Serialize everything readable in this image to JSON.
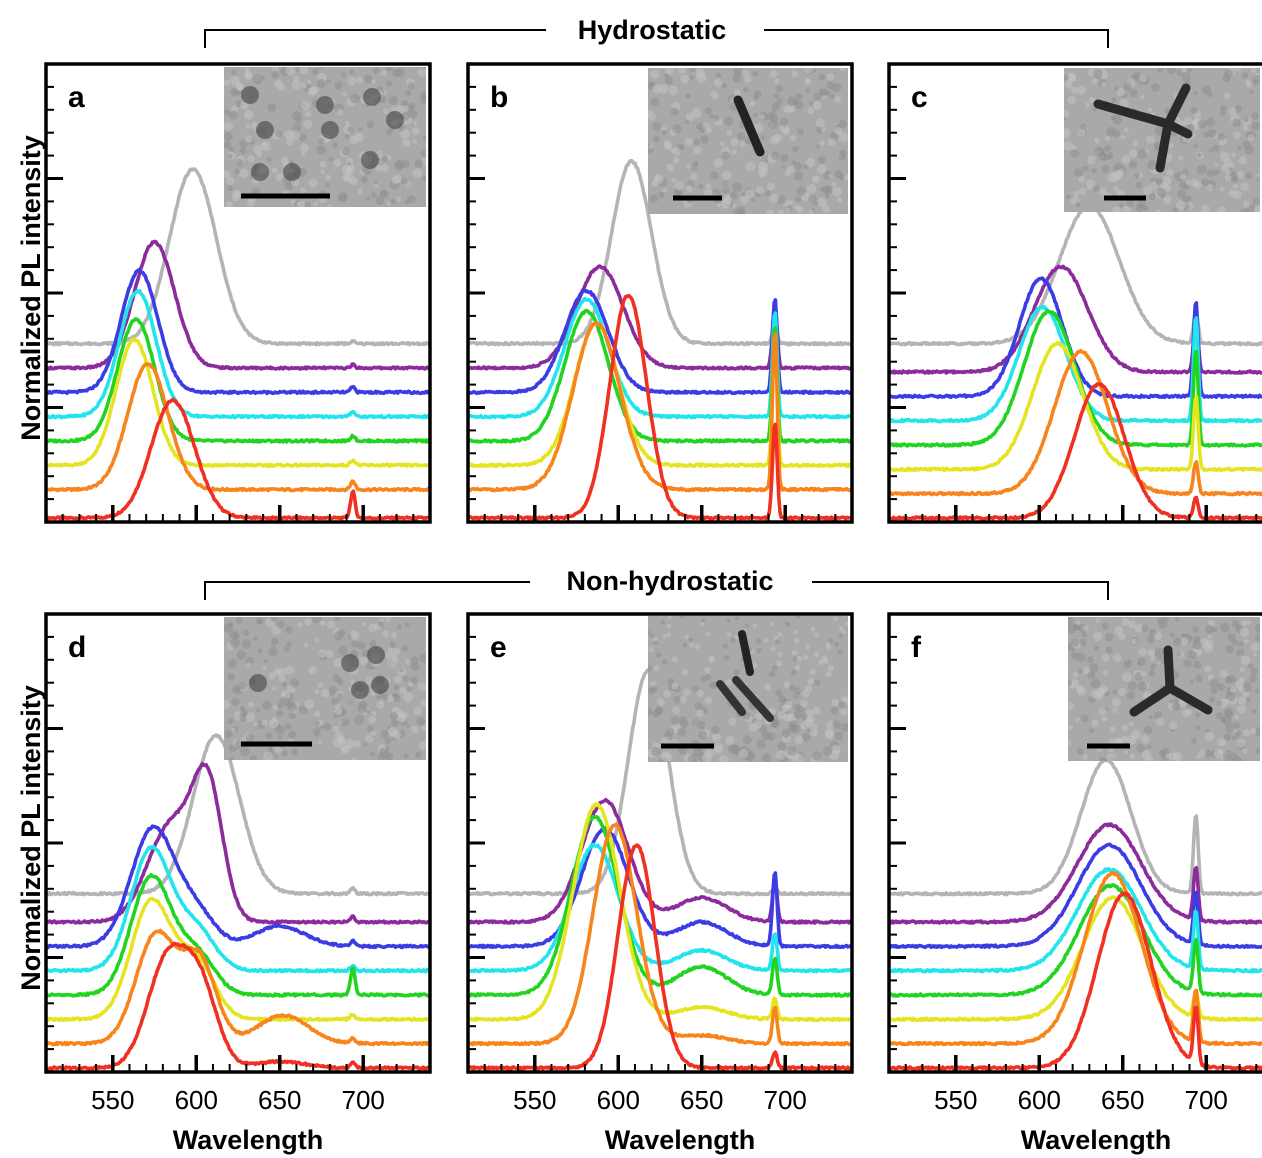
{
  "figure": {
    "y_axis_label": "Normalized PL intensity",
    "x_axis_label": "Wavelength",
    "group_top_label": "Hydrostatic",
    "group_bottom_label": "Non-hydrostatic",
    "series_colors": [
      "#f03020",
      "#f8841c",
      "#e4e420",
      "#22d422",
      "#22e4ec",
      "#3c3ce4",
      "#8c2c9c",
      "#b4b4b4"
    ],
    "scale_bar_color": "#000000"
  },
  "chart_data": [
    {
      "panel": "a",
      "type": "line",
      "group": "Hydrostatic",
      "xlabel": "Wavelength",
      "ylabel": "Normalized PL intensity",
      "xlim": [
        510,
        740
      ],
      "xticks": [
        550,
        600,
        650,
        700
      ],
      "xtick_labels_visible": false,
      "offsets": [
        0.0,
        0.35,
        0.65,
        0.95,
        1.25,
        1.55,
        1.85,
        2.15
      ],
      "series": [
        {
          "color": "#f03020",
          "peaks": [
            {
              "center": 586,
              "width": 13,
              "height": 1.45
            }
          ],
          "ruby_peak": 0.25
        },
        {
          "color": "#f8841c",
          "peaks": [
            {
              "center": 571,
              "width": 12,
              "height": 1.55
            }
          ],
          "ruby_peak": 0.08
        },
        {
          "color": "#e4e420",
          "peaks": [
            {
              "center": 563,
              "width": 11,
              "height": 1.55
            }
          ],
          "ruby_peak": 0.05
        },
        {
          "color": "#22d422",
          "peaks": [
            {
              "center": 564,
              "width": 11,
              "height": 1.5
            }
          ],
          "ruby_peak": 0.05
        },
        {
          "color": "#22e4ec",
          "peaks": [
            {
              "center": 565,
              "width": 11,
              "height": 1.55
            }
          ],
          "ruby_peak": 0.05
        },
        {
          "color": "#3c3ce4",
          "peaks": [
            {
              "center": 566,
              "width": 11,
              "height": 1.5
            }
          ],
          "ruby_peak": 0.05
        },
        {
          "color": "#8c2c9c",
          "peaks": [
            {
              "center": 575,
              "width": 12,
              "height": 1.55
            }
          ],
          "ruby_peak": 0.03
        },
        {
          "color": "#b4b4b4",
          "peaks": [
            {
              "center": 598,
              "width": 14,
              "height": 2.15
            }
          ],
          "ruby_peak": 0.02
        }
      ]
    },
    {
      "panel": "b",
      "type": "line",
      "group": "Hydrostatic",
      "xlabel": "Wavelength",
      "ylabel": "Normalized PL intensity",
      "xlim": [
        510,
        740
      ],
      "xticks": [
        550,
        600,
        650,
        700
      ],
      "xtick_labels_visible": false,
      "offsets": [
        0.0,
        0.35,
        0.65,
        0.95,
        1.25,
        1.55,
        1.85,
        2.15
      ],
      "series": [
        {
          "color": "#f03020",
          "peaks": [
            {
              "center": 606,
              "width": 11,
              "height": 2.75
            }
          ],
          "ruby_peak": 0.9
        },
        {
          "color": "#f8841c",
          "peaks": [
            {
              "center": 587,
              "width": 14,
              "height": 2.05
            }
          ],
          "ruby_peak": 1.5
        },
        {
          "color": "#e4e420",
          "peaks": [
            {
              "center": 587,
              "width": 13,
              "height": 1.75
            }
          ],
          "ruby_peak": 1.2
        },
        {
          "color": "#22d422",
          "peaks": [
            {
              "center": 581,
              "width": 13,
              "height": 1.6
            }
          ],
          "ruby_peak": 1.1
        },
        {
          "color": "#22e4ec",
          "peaks": [
            {
              "center": 581,
              "width": 13,
              "height": 1.45
            }
          ],
          "ruby_peak": 1.0
        },
        {
          "color": "#3c3ce4",
          "peaks": [
            {
              "center": 581,
              "width": 13,
              "height": 1.25
            }
          ],
          "ruby_peak": 0.9
        },
        {
          "color": "#8c2c9c",
          "peaks": [
            {
              "center": 589,
              "width": 14,
              "height": 1.25
            }
          ],
          "ruby_peak": 0.6
        },
        {
          "color": "#b4b4b4",
          "peaks": [
            {
              "center": 608,
              "width": 12,
              "height": 2.25
            }
          ],
          "ruby_peak": 0.2
        }
      ]
    },
    {
      "panel": "c",
      "type": "line",
      "group": "Hydrostatic",
      "xlabel": "Wavelength",
      "ylabel": "Normalized PL intensity",
      "xlim": [
        510,
        740
      ],
      "xticks": [
        550,
        600,
        650,
        700
      ],
      "xtick_labels_visible": false,
      "offsets": [
        0.0,
        0.3,
        0.6,
        0.9,
        1.2,
        1.5,
        1.8,
        2.15
      ],
      "series": [
        {
          "color": "#f03020",
          "peaks": [
            {
              "center": 636,
              "width": 15,
              "height": 1.65
            }
          ],
          "ruby_peak": 0.2
        },
        {
          "color": "#f8841c",
          "peaks": [
            {
              "center": 625,
              "width": 16,
              "height": 1.75
            }
          ],
          "ruby_peak": 0.3
        },
        {
          "color": "#e4e420",
          "peaks": [
            {
              "center": 611,
              "width": 15,
              "height": 1.55
            }
          ],
          "ruby_peak": 0.7
        },
        {
          "color": "#22d422",
          "peaks": [
            {
              "center": 606,
              "width": 15,
              "height": 1.65
            }
          ],
          "ruby_peak": 0.9
        },
        {
          "color": "#22e4ec",
          "peaks": [
            {
              "center": 602,
              "width": 14,
              "height": 1.4
            }
          ],
          "ruby_peak": 1.0
        },
        {
          "color": "#3c3ce4",
          "peaks": [
            {
              "center": 601,
              "width": 13,
              "height": 1.45
            }
          ],
          "ruby_peak": 0.9
        },
        {
          "color": "#8c2c9c",
          "peaks": [
            {
              "center": 613,
              "width": 16,
              "height": 1.3
            }
          ],
          "ruby_peak": 0.5
        },
        {
          "color": "#b4b4b4",
          "peaks": [
            {
              "center": 630,
              "width": 18,
              "height": 1.7
            }
          ],
          "ruby_peak": 0.3
        }
      ]
    },
    {
      "panel": "d",
      "type": "line",
      "group": "Non-hydrostatic",
      "xlabel": "Wavelength",
      "ylabel": "Normalized PL intensity",
      "xlim": [
        510,
        740
      ],
      "xticks": [
        550,
        600,
        650,
        700
      ],
      "xtick_labels_visible": true,
      "offsets": [
        0.0,
        0.3,
        0.6,
        0.9,
        1.2,
        1.5,
        1.8,
        2.15
      ],
      "series": [
        {
          "color": "#f03020",
          "peaks": [
            {
              "center": 583,
              "width": 12,
              "height": 1.35
            },
            {
              "center": 603,
              "width": 10,
              "height": 0.9
            },
            {
              "center": 650,
              "width": 15,
              "height": 0.08
            }
          ],
          "ruby_peak": 0.05
        },
        {
          "color": "#f8841c",
          "peaks": [
            {
              "center": 576,
              "width": 12,
              "height": 1.35
            },
            {
              "center": 602,
              "width": 10,
              "height": 1.0
            },
            {
              "center": 652,
              "width": 15,
              "height": 0.35
            }
          ],
          "ruby_peak": 0.05
        },
        {
          "color": "#e4e420",
          "peaks": [
            {
              "center": 573,
              "width": 12,
              "height": 1.45
            },
            {
              "center": 600,
              "width": 11,
              "height": 0.7
            }
          ],
          "ruby_peak": 0.05
        },
        {
          "color": "#22d422",
          "peaks": [
            {
              "center": 573,
              "width": 12,
              "height": 1.45
            },
            {
              "center": 600,
              "width": 11,
              "height": 0.5
            }
          ],
          "ruby_peak": 0.25
        },
        {
          "color": "#22e4ec",
          "peaks": [
            {
              "center": 573,
              "width": 12,
              "height": 1.5
            },
            {
              "center": 600,
              "width": 11,
              "height": 0.5
            }
          ],
          "ruby_peak": 0.05
        },
        {
          "color": "#3c3ce4",
          "peaks": [
            {
              "center": 574,
              "width": 13,
              "height": 1.45
            },
            {
              "center": 600,
              "width": 11,
              "height": 0.4
            },
            {
              "center": 650,
              "width": 15,
              "height": 0.25
            }
          ],
          "ruby_peak": 0.05
        },
        {
          "color": "#8c2c9c",
          "peaks": [
            {
              "center": 585,
              "width": 14,
              "height": 1.2
            },
            {
              "center": 607,
              "width": 9,
              "height": 1.55
            }
          ],
          "ruby_peak": 0.05
        },
        {
          "color": "#b4b4b4",
          "peaks": [
            {
              "center": 612,
              "width": 14,
              "height": 1.95
            }
          ],
          "ruby_peak": 0.05
        }
      ]
    },
    {
      "panel": "e",
      "type": "line",
      "group": "Non-hydrostatic",
      "xlabel": "Wavelength",
      "ylabel": "Normalized PL intensity",
      "xlim": [
        510,
        740
      ],
      "xticks": [
        550,
        600,
        650,
        700
      ],
      "xtick_labels_visible": true,
      "offsets": [
        0.0,
        0.3,
        0.6,
        0.9,
        1.2,
        1.5,
        1.8,
        2.15
      ],
      "series": [
        {
          "color": "#f03020",
          "peaks": [
            {
              "center": 611,
              "width": 11,
              "height": 2.75
            }
          ],
          "ruby_peak": 0.15
        },
        {
          "color": "#f8841c",
          "peaks": [
            {
              "center": 598,
              "width": 13,
              "height": 2.7
            },
            {
              "center": 650,
              "width": 15,
              "height": 0.1
            }
          ],
          "ruby_peak": 0.35
        },
        {
          "color": "#e4e420",
          "peaks": [
            {
              "center": 587,
              "width": 14,
              "height": 2.65
            },
            {
              "center": 650,
              "width": 15,
              "height": 0.15
            }
          ],
          "ruby_peak": 0.2
        },
        {
          "color": "#22d422",
          "peaks": [
            {
              "center": 586,
              "width": 14,
              "height": 2.2
            },
            {
              "center": 650,
              "width": 15,
              "height": 0.35
            }
          ],
          "ruby_peak": 0.35
        },
        {
          "color": "#22e4ec",
          "peaks": [
            {
              "center": 586,
              "width": 14,
              "height": 1.55
            },
            {
              "center": 650,
              "width": 15,
              "height": 0.25
            }
          ],
          "ruby_peak": 0.35
        },
        {
          "color": "#3c3ce4",
          "peaks": [
            {
              "center": 592,
              "width": 14,
              "height": 1.45
            },
            {
              "center": 650,
              "width": 15,
              "height": 0.3
            }
          ],
          "ruby_peak": 0.7
        },
        {
          "color": "#8c2c9c",
          "peaks": [
            {
              "center": 592,
              "width": 14,
              "height": 1.5
            },
            {
              "center": 650,
              "width": 15,
              "height": 0.3
            }
          ],
          "ruby_peak": 0.4
        },
        {
          "color": "#b4b4b4",
          "peaks": [
            {
              "center": 618,
              "width": 12,
              "height": 2.75
            }
          ],
          "ruby_peak": 0.05
        }
      ]
    },
    {
      "panel": "f",
      "type": "line",
      "group": "Non-hydrostatic",
      "xlabel": "Wavelength",
      "ylabel": "Normalized PL intensity",
      "xlim": [
        510,
        740
      ],
      "xticks": [
        550,
        600,
        650,
        700
      ],
      "xtick_labels_visible": true,
      "offsets": [
        0.0,
        0.3,
        0.6,
        0.9,
        1.2,
        1.5,
        1.8,
        2.15
      ],
      "series": [
        {
          "color": "#f03020",
          "peaks": [
            {
              "center": 651,
              "width": 16,
              "height": 2.15
            }
          ],
          "ruby_peak": 0.55
        },
        {
          "color": "#f8841c",
          "peaks": [
            {
              "center": 644,
              "width": 17,
              "height": 2.1
            }
          ],
          "ruby_peak": 0.5
        },
        {
          "color": "#e4e420",
          "peaks": [
            {
              "center": 644,
              "width": 18,
              "height": 1.5
            }
          ],
          "ruby_peak": 0.25
        },
        {
          "color": "#22d422",
          "peaks": [
            {
              "center": 643,
              "width": 19,
              "height": 1.35
            }
          ],
          "ruby_peak": 0.5
        },
        {
          "color": "#22e4ec",
          "peaks": [
            {
              "center": 642,
              "width": 19,
              "height": 1.25
            }
          ],
          "ruby_peak": 0.55
        },
        {
          "color": "#3c3ce4",
          "peaks": [
            {
              "center": 642,
              "width": 19,
              "height": 1.25
            }
          ],
          "ruby_peak": 0.5
        },
        {
          "color": "#8c2c9c",
          "peaks": [
            {
              "center": 642,
              "width": 19,
              "height": 1.2
            }
          ],
          "ruby_peak": 0.5
        },
        {
          "color": "#b4b4b4",
          "peaks": [
            {
              "center": 640,
              "width": 15,
              "height": 1.65
            }
          ],
          "ruby_peak": 0.75
        }
      ]
    }
  ]
}
